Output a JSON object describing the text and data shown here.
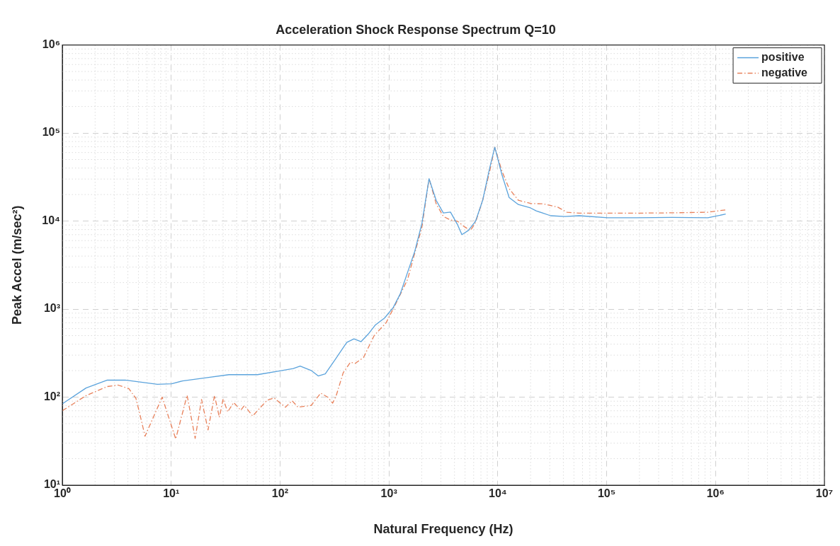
{
  "chart_data": {
    "type": "line",
    "title": "Acceleration Shock Response Spectrum Q=10",
    "xlabel": "Natural Frequency (Hz)",
    "ylabel": "Peak Accel (m/sec²)",
    "log": "xy",
    "grid": true,
    "legend": "top right",
    "marker": "none",
    "xlim": [
      1,
      10000000
    ],
    "ylim": [
      10,
      1000000
    ],
    "xticks": [
      {
        "value": 1,
        "label": "10⁰"
      },
      {
        "value": 10,
        "label": "10¹"
      },
      {
        "value": 100,
        "label": "10²"
      },
      {
        "value": 1000,
        "label": "10³"
      },
      {
        "value": 10000,
        "label": "10⁴"
      },
      {
        "value": 100000,
        "label": "10⁵"
      },
      {
        "value": 1000000,
        "label": "10⁶"
      },
      {
        "value": 10000000,
        "label": "10⁷"
      }
    ],
    "yticks": [
      {
        "value": 10,
        "label": "10¹"
      },
      {
        "value": 100,
        "label": "10²"
      },
      {
        "value": 1000,
        "label": "10³"
      },
      {
        "value": 10000,
        "label": "10⁴"
      },
      {
        "value": 100000,
        "label": "10⁵"
      },
      {
        "value": 1000000,
        "label": "10⁶"
      }
    ],
    "series": [
      {
        "name": "positive",
        "color": "#5ba3dc",
        "line_style": "solid",
        "x": [
          1,
          1.65,
          2.59,
          3.78,
          7.47,
          10.1,
          12.7,
          21.5,
          33.9,
          62,
          97.7,
          132,
          153,
          193,
          224,
          260,
          303,
          353,
          410,
          477,
          555,
          646,
          751,
          914,
          1097,
          1276,
          1483,
          1726,
          2009,
          2336,
          2716,
          3160,
          3675,
          4275,
          4680,
          5360,
          6240,
          7260,
          8440,
          9380,
          10900,
          12700,
          15450,
          19950,
          22500,
          30500,
          41300,
          55900,
          102000,
          187000,
          399000,
          849000,
          1240000
        ],
        "values": [
          84,
          127,
          156,
          156,
          140,
          142,
          153,
          167,
          180,
          180,
          198,
          211,
          225,
          201,
          174,
          184,
          241,
          318,
          419,
          459,
          427,
          521,
          661,
          794,
          1045,
          1508,
          2612,
          4518,
          9397,
          30300,
          17200,
          12360,
          12630,
          9060,
          7010,
          7820,
          9930,
          17200,
          40600,
          69000,
          33800,
          18500,
          15400,
          14100,
          13070,
          11500,
          11270,
          11500,
          10900,
          10900,
          11000,
          10900,
          12000
        ]
      },
      {
        "name": "negative",
        "color": "#e8805a",
        "line_style": "dashed",
        "x": [
          1,
          1.65,
          2.59,
          3.25,
          4.08,
          4.74,
          5.11,
          5.75,
          8.26,
          11,
          14,
          16.6,
          19,
          21.8,
          25,
          27.7,
          30,
          33,
          37.5,
          43.6,
          47,
          56,
          75.8,
          88,
          112,
          129,
          146,
          193,
          236,
          274,
          304,
          327,
          380,
          443,
          490,
          583,
          733,
          944,
          1153,
          1483,
          2009,
          2336,
          2716,
          3160,
          3675,
          4275,
          4970,
          5610,
          6240,
          7260,
          8440,
          9380,
          10900,
          12700,
          15450,
          20300,
          26200,
          35500,
          43200,
          55900,
          102000,
          187000,
          399000,
          849000,
          1240000
        ],
        "values": [
          70,
          104,
          132,
          137,
          125,
          97,
          67,
          36,
          100,
          33.5,
          105,
          34,
          94,
          42.5,
          104,
          59,
          95.5,
          68,
          86.7,
          71,
          80.5,
          61,
          92,
          98,
          76.8,
          91,
          77,
          80.5,
          111,
          100,
          85.5,
          103,
          189,
          249,
          242,
          281,
          502,
          703,
          1146,
          2173,
          8540,
          30300,
          15700,
          11270,
          10300,
          9930,
          8570,
          7820,
          9640,
          17200,
          37100,
          69000,
          37100,
          23400,
          17200,
          15800,
          15700,
          14400,
          12600,
          12300,
          12300,
          12300,
          12400,
          12600,
          13400
        ]
      }
    ]
  }
}
